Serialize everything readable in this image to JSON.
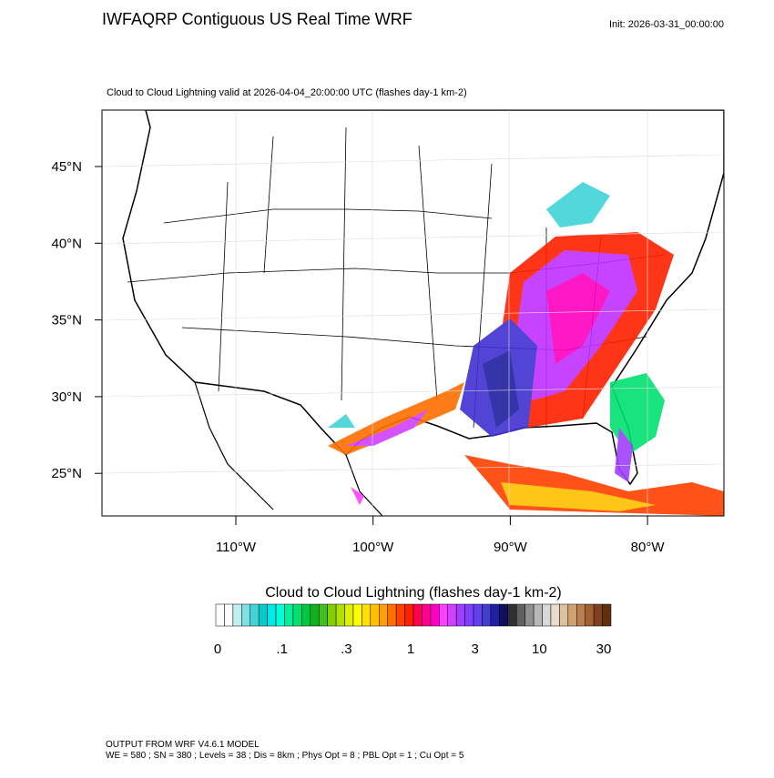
{
  "header": {
    "title": "IWFAQRP Contiguous US Real Time WRF",
    "init": "Init: 2026-03-31_00:00:00"
  },
  "map": {
    "subtitle": "Cloud to Cloud Lightning valid at 2026-04-04_20:00:00 UTC   (flashes day-1 km-2)",
    "lat_labels": [
      "45°N",
      "40°N",
      "35°N",
      "30°N",
      "25°N"
    ],
    "lon_labels": [
      "110°W",
      "100°W",
      "90°W",
      "80°W"
    ]
  },
  "colorbar": {
    "title": "Cloud to Cloud Lightning  (flashes day-1 km-2)",
    "colors": [
      "#ffffff",
      "#ffffff",
      "#bfeff0",
      "#80e0e4",
      "#40d4d8",
      "#00cccc",
      "#00e8e8",
      "#00ffd8",
      "#00f0a0",
      "#00e070",
      "#00c840",
      "#10b020",
      "#40c020",
      "#80d000",
      "#b0e000",
      "#e0f000",
      "#ffff00",
      "#ffe000",
      "#ffc000",
      "#ffa000",
      "#ff7000",
      "#ff4000",
      "#ff2000",
      "#ff0050",
      "#ff0090",
      "#ff00c0",
      "#ff40ff",
      "#d040ff",
      "#a040ff",
      "#8040ff",
      "#6040f0",
      "#4040d0",
      "#2020a0",
      "#101060",
      "#303030",
      "#606060",
      "#909090",
      "#b8b8b8",
      "#d8d8d8",
      "#e8dccc",
      "#dcc0a0",
      "#d0a070",
      "#b88050",
      "#a06030",
      "#804020",
      "#603010"
    ],
    "tick_labels": [
      "0",
      ".1",
      ".3",
      "1",
      "3",
      "10",
      "30"
    ]
  },
  "footer": {
    "line1": "OUTPUT FROM WRF V4.6.1 MODEL",
    "line2": "WE = 580 ; SN = 380 ; Levels = 38 ; Dis = 8km ; Phys Opt = 8 ; PBL Opt = 1 ; Cu Opt = 5"
  }
}
